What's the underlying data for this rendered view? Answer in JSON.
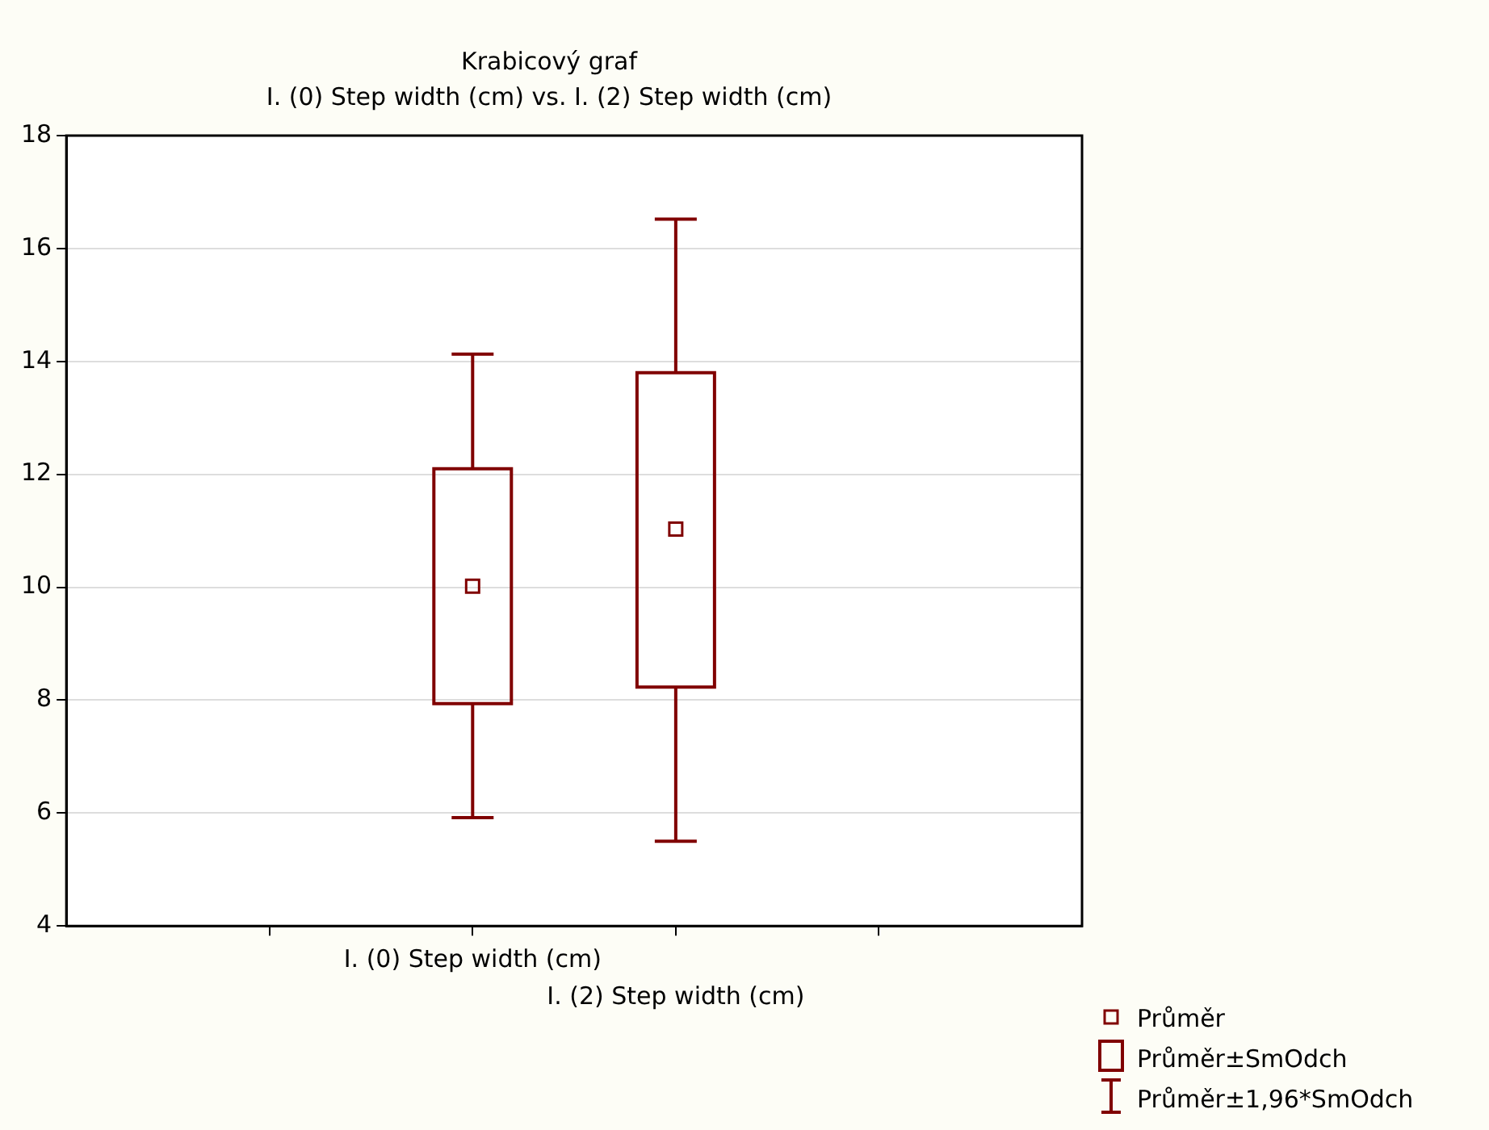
{
  "chart_data": {
    "type": "box",
    "title": "Krabicový graf",
    "subtitle": "I. (0) Step width (cm) vs. I. (2) Step width (cm)",
    "categories": [
      "I. (0) Step width (cm)",
      "I. (2) Step width (cm)"
    ],
    "boxes": [
      {
        "low": 5.92,
        "q1": 7.94,
        "q3": 12.1,
        "high": 14.13,
        "mean": 10.02
      },
      {
        "low": 5.5,
        "q1": 8.23,
        "q3": 13.8,
        "high": 16.52,
        "mean": 11.03
      }
    ],
    "color": "#800000",
    "ylim": [
      4,
      18
    ],
    "yticks": [
      4,
      6,
      8,
      10,
      12,
      14,
      16,
      18
    ],
    "grid": "y",
    "annotations": [
      "Průměr",
      "Průměr±SmOdch",
      "Průměr±1,96*SmOdch"
    ]
  }
}
